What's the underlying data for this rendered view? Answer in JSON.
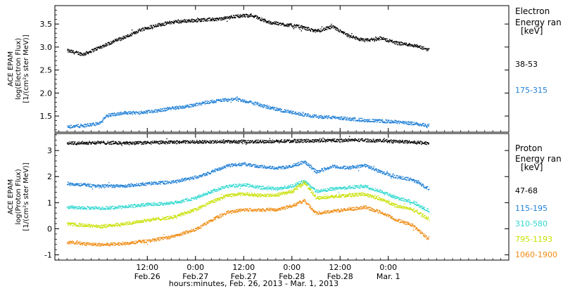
{
  "chart_data": [
    {
      "type": "scatter",
      "panel": "electron",
      "ylabel": [
        "ACE EPAM",
        "log(Electron Flux)",
        "[1/(cm²s ster MeV)]"
      ],
      "ylim": [
        1.15,
        3.9
      ],
      "yticks": [
        "1.5",
        "2.0",
        "2.5",
        "3.0",
        "3.5"
      ],
      "yticks_values": [
        1.5,
        2.0,
        2.5,
        3.0,
        3.5
      ],
      "legend_title": [
        "Electron",
        "Energy ran",
        "[keV]"
      ],
      "x_unit": "hours since 00:00 Feb 26 2013",
      "series": [
        {
          "name": "38-53",
          "color": "#000000",
          "x": [
            -8,
            -4,
            0,
            4,
            8,
            10,
            14,
            18,
            22,
            26,
            30,
            34,
            38,
            42,
            46,
            50,
            54,
            58,
            62,
            66,
            70,
            74,
            78,
            82
          ],
          "y": [
            2.93,
            2.85,
            3.0,
            3.15,
            3.28,
            3.38,
            3.48,
            3.55,
            3.58,
            3.6,
            3.62,
            3.68,
            3.7,
            3.55,
            3.5,
            3.45,
            3.35,
            3.45,
            3.25,
            3.15,
            3.2,
            3.1,
            3.05,
            2.95
          ]
        },
        {
          "name": "175-315",
          "color": "#1e7fd6",
          "x": [
            -8,
            -4,
            0,
            2,
            6,
            10,
            14,
            18,
            22,
            26,
            30,
            34,
            38,
            42,
            46,
            50,
            54,
            58,
            62,
            66,
            70,
            74,
            78,
            82
          ],
          "y": [
            1.28,
            1.3,
            1.35,
            1.52,
            1.58,
            1.58,
            1.62,
            1.68,
            1.72,
            1.8,
            1.85,
            1.88,
            1.8,
            1.7,
            1.62,
            1.55,
            1.5,
            1.48,
            1.45,
            1.42,
            1.4,
            1.38,
            1.35,
            1.3
          ]
        }
      ]
    },
    {
      "type": "scatter",
      "panel": "proton",
      "ylabel": [
        "ACE EPAM",
        "log(Proton Flux)",
        "[1/(cm²s ster MeV)]"
      ],
      "ylim": [
        -1.2,
        3.65
      ],
      "yticks": [
        "-1",
        "0",
        "1",
        "2",
        "3"
      ],
      "yticks_values": [
        -1,
        0,
        1,
        2,
        3
      ],
      "legend_title": [
        "Proton",
        "Energy ran",
        "[keV]"
      ],
      "x_unit": "hours since 00:00 Feb 26 2013",
      "series": [
        {
          "name": "47-68",
          "color": "#000000",
          "x": [
            -8,
            0,
            8,
            16,
            24,
            32,
            40,
            48,
            56,
            64,
            72,
            82
          ],
          "y": [
            3.3,
            3.32,
            3.3,
            3.33,
            3.35,
            3.35,
            3.36,
            3.38,
            3.4,
            3.42,
            3.38,
            3.3
          ]
        },
        {
          "name": "115-195",
          "color": "#1e7fd6",
          "x": [
            -8,
            0,
            6,
            12,
            18,
            24,
            28,
            32,
            36,
            40,
            44,
            48,
            51,
            54,
            58,
            62,
            66,
            70,
            74,
            78,
            82
          ],
          "y": [
            1.75,
            1.65,
            1.65,
            1.75,
            1.8,
            2.0,
            2.2,
            2.45,
            2.5,
            2.4,
            2.35,
            2.4,
            2.6,
            2.2,
            2.4,
            2.35,
            2.45,
            2.2,
            2.0,
            1.9,
            1.55
          ]
        },
        {
          "name": "310-580",
          "color": "#30d8d0",
          "x": [
            -8,
            0,
            6,
            12,
            18,
            24,
            28,
            32,
            36,
            40,
            44,
            48,
            51,
            54,
            58,
            62,
            66,
            70,
            74,
            78,
            82
          ],
          "y": [
            0.85,
            0.8,
            0.85,
            0.95,
            1.0,
            1.2,
            1.45,
            1.65,
            1.7,
            1.6,
            1.55,
            1.65,
            1.85,
            1.45,
            1.55,
            1.6,
            1.65,
            1.45,
            1.2,
            1.05,
            0.7
          ]
        },
        {
          "name": "795-1193",
          "color": "#c8e000",
          "x": [
            -8,
            0,
            6,
            12,
            18,
            24,
            28,
            32,
            36,
            40,
            44,
            48,
            51,
            54,
            58,
            62,
            66,
            70,
            74,
            78,
            82
          ],
          "y": [
            0.2,
            0.1,
            0.2,
            0.35,
            0.45,
            0.75,
            1.05,
            1.3,
            1.35,
            1.3,
            1.3,
            1.45,
            1.8,
            1.2,
            1.25,
            1.3,
            1.35,
            1.15,
            0.9,
            0.75,
            0.4
          ]
        },
        {
          "name": "1060-1900",
          "color": "#f08a10",
          "x": [
            -8,
            0,
            6,
            12,
            18,
            24,
            28,
            32,
            36,
            40,
            44,
            48,
            51,
            54,
            58,
            62,
            66,
            70,
            74,
            78,
            82
          ],
          "y": [
            -0.5,
            -0.6,
            -0.55,
            -0.45,
            -0.3,
            0.0,
            0.35,
            0.65,
            0.75,
            0.75,
            0.75,
            0.9,
            1.1,
            0.6,
            0.7,
            0.75,
            0.85,
            0.65,
            0.35,
            0.15,
            -0.4
          ]
        }
      ]
    }
  ],
  "xaxis": {
    "title": "hours:minutes, Feb. 26, 2013 - Mar. 1, 2013",
    "xlim": [
      -11,
      102
    ],
    "ticks": [
      {
        "hour": 12,
        "time": "12:00",
        "date": "Feb.26"
      },
      {
        "hour": 24,
        "time": "0:00",
        "date": "Feb.27"
      },
      {
        "hour": 36,
        "time": "12:00",
        "date": "Feb.27"
      },
      {
        "hour": 48,
        "time": "0:00",
        "date": "Feb.28"
      },
      {
        "hour": 60,
        "time": "12:00",
        "date": "Feb.28"
      },
      {
        "hour": 72,
        "time": "0:00",
        "date": "Mar. 1"
      }
    ],
    "minor_every_hours": 2
  }
}
